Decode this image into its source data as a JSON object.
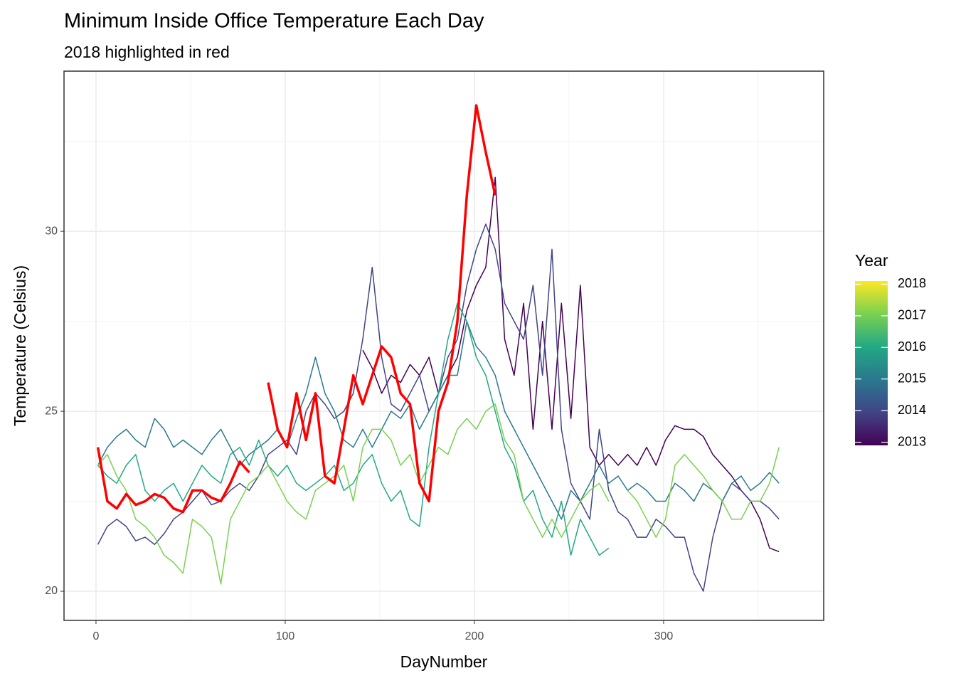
{
  "chart_data": {
    "type": "line",
    "title": "Minimum Inside Office Temperature Each Day",
    "subtitle": "2018 highlighted in red",
    "x_label": "DayNumber",
    "y_label": "Temperature (Celsius)",
    "xlim": [
      -16.9,
      384.6
    ],
    "ylim": [
      19.19,
      34.45
    ],
    "xticks": [
      0,
      100,
      200,
      300
    ],
    "yticks": [
      20,
      25,
      30
    ],
    "xminorticks": [
      50,
      150,
      250,
      350
    ],
    "yminorticks": [
      22.5,
      27.5,
      32.5
    ],
    "grid": true,
    "x": [
      1,
      6,
      11,
      16,
      21,
      26,
      31,
      36,
      41,
      46,
      51,
      56,
      61,
      66,
      71,
      76,
      81,
      86,
      91,
      96,
      101,
      106,
      111,
      116,
      121,
      126,
      131,
      136,
      141,
      146,
      151,
      156,
      161,
      166,
      171,
      176,
      181,
      186,
      191,
      196,
      201,
      206,
      211,
      216,
      221,
      226,
      231,
      236,
      241,
      246,
      251,
      256,
      261,
      266,
      271,
      276,
      281,
      286,
      291,
      296,
      301,
      306,
      311,
      316,
      321,
      326,
      331,
      336,
      341,
      346,
      351,
      356,
      361
    ],
    "series": [
      {
        "name": "2013",
        "color": "#440154",
        "values": [
          null,
          null,
          null,
          null,
          null,
          null,
          null,
          null,
          null,
          null,
          null,
          null,
          null,
          null,
          null,
          null,
          null,
          null,
          null,
          null,
          null,
          null,
          null,
          null,
          null,
          null,
          null,
          null,
          26.7,
          26.2,
          25.5,
          26.0,
          25.8,
          26.3,
          26.0,
          26.5,
          25.5,
          26.0,
          26.5,
          27.8,
          28.5,
          29.0,
          31.5,
          27.0,
          26.0,
          28.0,
          24.5,
          27.5,
          24.5,
          28.0,
          24.8,
          28.5,
          24.0,
          23.5,
          23.8,
          23.5,
          23.8,
          23.5,
          24.0,
          23.5,
          24.2,
          24.6,
          24.5,
          24.5,
          24.3,
          23.8,
          23.5,
          23.2,
          22.8,
          22.5,
          22.0,
          21.2,
          21.1
        ]
      },
      {
        "name": "2014",
        "color": "#414487",
        "values": [
          21.3,
          21.8,
          22.0,
          21.8,
          21.4,
          21.5,
          21.3,
          21.6,
          22.0,
          22.2,
          22.5,
          22.8,
          22.4,
          22.5,
          22.8,
          23.0,
          22.8,
          23.2,
          23.8,
          24.0,
          24.2,
          23.8,
          25.0,
          25.5,
          25.2,
          24.8,
          25.0,
          25.5,
          27.0,
          29.0,
          26.5,
          25.2,
          25.0,
          25.5,
          26.0,
          25.0,
          25.5,
          26.5,
          27.0,
          28.5,
          29.5,
          30.2,
          29.5,
          28.0,
          27.5,
          27.0,
          28.5,
          26.0,
          29.5,
          24.5,
          23.0,
          22.5,
          22.0,
          24.5,
          22.8,
          22.2,
          22.0,
          21.5,
          21.5,
          22.0,
          21.8,
          21.5,
          21.5,
          20.5,
          20.0,
          21.5,
          22.5,
          23.0,
          22.8,
          22.5,
          22.5,
          22.3,
          22.0
        ]
      },
      {
        "name": "2015",
        "color": "#2a788e",
        "values": [
          23.5,
          24.0,
          24.3,
          24.5,
          24.2,
          24.0,
          24.8,
          24.5,
          24.0,
          24.2,
          24.0,
          23.8,
          24.2,
          24.5,
          24.0,
          23.5,
          23.8,
          24.0,
          24.2,
          24.5,
          24.0,
          24.8,
          25.5,
          26.5,
          25.5,
          25.0,
          24.2,
          24.0,
          24.5,
          24.0,
          24.5,
          25.0,
          24.8,
          25.2,
          24.5,
          25.0,
          25.5,
          26.0,
          26.0,
          27.5,
          26.8,
          26.5,
          26.0,
          25.0,
          24.5,
          24.0,
          23.5,
          23.0,
          22.5,
          22.0,
          22.8,
          22.5,
          23.0,
          23.5,
          23.0,
          23.2,
          22.8,
          23.0,
          22.8,
          22.5,
          22.5,
          23.0,
          22.8,
          22.5,
          23.0,
          22.8,
          22.5,
          23.0,
          23.2,
          22.8,
          23.0,
          23.3,
          23.0
        ]
      },
      {
        "name": "2016",
        "color": "#22a884",
        "values": [
          23.5,
          23.2,
          23.0,
          23.5,
          23.8,
          22.8,
          22.5,
          22.8,
          23.0,
          22.5,
          23.0,
          23.5,
          23.2,
          23.0,
          23.8,
          24.0,
          23.5,
          24.2,
          23.5,
          23.2,
          23.5,
          23.0,
          22.8,
          23.0,
          23.2,
          23.5,
          22.8,
          23.0,
          23.5,
          23.8,
          23.0,
          22.5,
          22.8,
          22.0,
          21.8,
          24.0,
          25.5,
          27.0,
          28.0,
          27.5,
          26.5,
          26.0,
          25.0,
          24.0,
          23.5,
          22.5,
          22.8,
          22.0,
          21.5,
          22.5,
          21.0,
          22.0,
          21.5,
          21.0,
          21.2,
          null,
          null,
          null,
          null,
          null,
          null,
          null,
          null,
          null,
          null,
          null,
          null,
          null,
          null,
          null,
          null,
          null,
          null
        ]
      },
      {
        "name": "2017",
        "color": "#7ad151",
        "values": [
          23.5,
          23.8,
          23.2,
          22.8,
          22.0,
          21.8,
          21.5,
          21.0,
          20.8,
          20.5,
          22.0,
          21.8,
          21.5,
          20.2,
          22.0,
          22.5,
          23.0,
          23.2,
          23.5,
          23.0,
          22.5,
          22.2,
          22.0,
          22.8,
          23.0,
          23.2,
          23.5,
          22.5,
          24.0,
          24.5,
          24.5,
          24.2,
          23.5,
          23.8,
          23.0,
          23.5,
          24.0,
          23.8,
          24.5,
          24.8,
          24.5,
          25.0,
          25.2,
          24.2,
          23.8,
          22.5,
          22.0,
          21.5,
          22.0,
          21.5,
          22.0,
          22.5,
          22.8,
          23.0,
          22.5,
          null,
          22.8,
          22.5,
          22.0,
          21.5,
          22.0,
          23.5,
          23.8,
          23.5,
          23.2,
          22.8,
          22.5,
          22.0,
          22.0,
          22.5,
          22.5,
          23.0,
          24.0
        ]
      },
      {
        "name": "2018",
        "color": "#ff0000",
        "values": [
          24.0,
          22.5,
          22.3,
          22.7,
          22.4,
          22.5,
          22.7,
          22.6,
          22.3,
          22.2,
          22.8,
          22.8,
          22.6,
          22.5,
          23.0,
          23.6,
          23.3,
          null,
          25.8,
          24.5,
          24.0,
          25.5,
          24.2,
          25.5,
          23.2,
          23.0,
          24.5,
          26.0,
          25.2,
          26.0,
          26.8,
          26.5,
          25.5,
          25.2,
          23.0,
          22.5,
          25.0,
          25.8,
          27.5,
          31.0,
          33.5,
          32.2,
          31.0,
          null,
          null,
          null,
          null,
          null,
          null,
          null,
          null,
          null,
          null,
          null,
          null,
          null,
          null,
          null,
          null,
          null,
          null,
          null,
          null,
          null,
          null,
          null,
          null,
          null,
          null,
          null,
          null,
          null,
          null
        ]
      }
    ],
    "legend": {
      "title": "Year",
      "ticks": [
        2013,
        2014,
        2015,
        2016,
        2017,
        2018
      ],
      "lim": [
        2012.9,
        2018.1
      ],
      "colors": [
        "#440154",
        "#414487",
        "#2a788e",
        "#22a884",
        "#7ad151",
        "#fde725"
      ]
    }
  }
}
